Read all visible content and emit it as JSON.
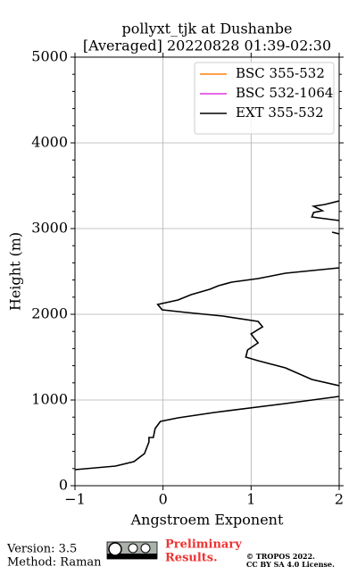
{
  "chart_data": {
    "type": "line",
    "title": [
      "pollyxt_tjk at Dushanbe",
      "[Averaged] 20220828 01:39-02:30"
    ],
    "x_label": "Angstroem Exponent",
    "y_label": "Height (m)",
    "xlim": [
      -1,
      2
    ],
    "ylim": [
      0,
      5000
    ],
    "xticks": [
      {
        "value": -1,
        "label": "−1"
      },
      0,
      1,
      2
    ],
    "yticks": [
      0,
      1000,
      2000,
      3000,
      4000,
      5000
    ],
    "grid": true,
    "legend": "upper right",
    "series": [
      {
        "name": "BSC 355-532",
        "color": "#ff7f0e",
        "x": [],
        "y": []
      },
      {
        "name": "BSC 532-1064",
        "color": "#e033e0",
        "x": [],
        "y": []
      },
      {
        "name": "EXT 355-532",
        "color": "#000000",
        "x": [
          -1.0,
          -0.54,
          -0.33,
          -0.21,
          -0.16,
          -0.16,
          -0.11,
          -0.09,
          -0.03,
          0.17,
          0.58,
          1.39,
          2.0,
          null,
          2.0,
          1.69,
          1.39,
          1.08,
          0.94,
          0.96,
          1.08,
          1.03,
          1.0,
          1.13,
          1.08,
          0.68,
          0.27,
          -0.01,
          -0.06,
          0.17,
          0.32,
          0.53,
          0.63,
          0.78,
          1.08,
          1.39,
          2.0,
          null,
          1.92,
          2.0,
          null,
          2.0,
          1.69,
          1.71,
          1.81,
          1.71,
          1.84,
          2.0
        ],
        "y": [
          188,
          229,
          281,
          375,
          510,
          563,
          563,
          667,
          750,
          792,
          854,
          958,
          1042,
          null,
          1167,
          1240,
          1375,
          1458,
          1500,
          1583,
          1667,
          1729,
          1771,
          1854,
          1917,
          1979,
          2021,
          2052,
          2115,
          2167,
          2229,
          2292,
          2333,
          2375,
          2417,
          2479,
          2542,
          null,
          2958,
          2938,
          null,
          3094,
          3135,
          3188,
          3208,
          3260,
          3281,
          3323
        ]
      }
    ]
  },
  "footer": {
    "version": "Version: 3.5",
    "method": "Method: Raman",
    "preliminary": [
      "Preliminary",
      "Results."
    ],
    "copyright": [
      "© TROPOS 2022.",
      "CC BY SA 4.0 License."
    ]
  }
}
